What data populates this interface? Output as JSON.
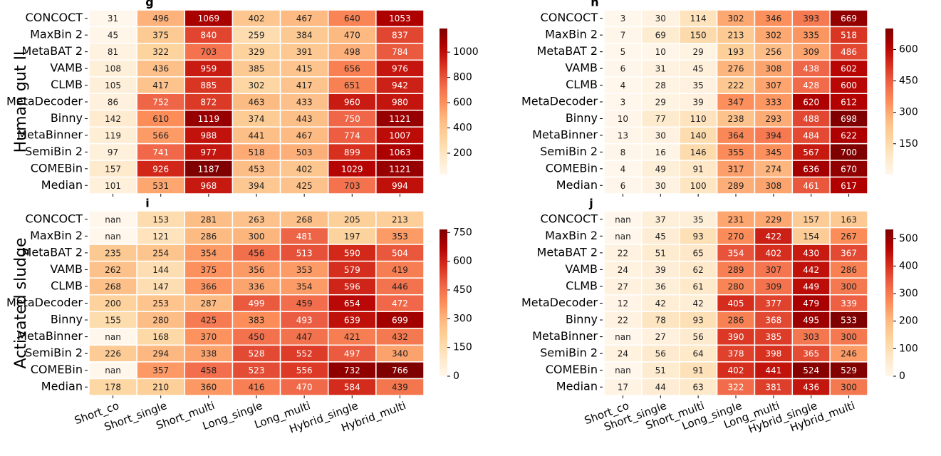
{
  "chart_data": [
    {
      "type": "heatmap",
      "panel_label": "g",
      "ylabel": "Human gut II",
      "colormap": "OrRd",
      "rows": [
        "CONCOCT",
        "MaxBin 2",
        "MetaBAT 2",
        "VAMB",
        "CLMB",
        "MetaDecoder",
        "Binny",
        "MetaBinner",
        "SemiBin 2",
        "COMEBin",
        "Median"
      ],
      "values": [
        [
          31,
          496,
          1069,
          402,
          467,
          640,
          1053
        ],
        [
          45,
          375,
          840,
          259,
          384,
          470,
          837
        ],
        [
          81,
          322,
          703,
          329,
          391,
          498,
          784
        ],
        [
          108,
          436,
          959,
          385,
          415,
          656,
          976
        ],
        [
          105,
          417,
          885,
          302,
          417,
          651,
          942
        ],
        [
          86,
          752,
          872,
          463,
          433,
          960,
          980
        ],
        [
          142,
          610,
          1119,
          374,
          443,
          750,
          1121
        ],
        [
          119,
          566,
          988,
          441,
          467,
          774,
          1007
        ],
        [
          97,
          741,
          977,
          518,
          503,
          899,
          1063
        ],
        [
          157,
          926,
          1187,
          453,
          402,
          1029,
          1121
        ],
        [
          101,
          531,
          968,
          394,
          425,
          703,
          994
        ]
      ],
      "clim": [
        31,
        1187
      ],
      "cticks": [
        200,
        400,
        600,
        800,
        1000
      ]
    },
    {
      "type": "heatmap",
      "panel_label": "h",
      "colormap": "OrRd",
      "rows": [
        "CONCOCT",
        "MaxBin 2",
        "MetaBAT 2",
        "VAMB",
        "CLMB",
        "MetaDecoder",
        "Binny",
        "MetaBinner",
        "SemiBin 2",
        "COMEBin",
        "Median"
      ],
      "values": [
        [
          3,
          30,
          114,
          302,
          346,
          393,
          669
        ],
        [
          7,
          69,
          150,
          213,
          302,
          335,
          518
        ],
        [
          5,
          10,
          29,
          193,
          256,
          309,
          486
        ],
        [
          6,
          31,
          45,
          276,
          308,
          438,
          602
        ],
        [
          4,
          28,
          35,
          222,
          307,
          428,
          600
        ],
        [
          3,
          29,
          39,
          347,
          333,
          620,
          612
        ],
        [
          10,
          77,
          110,
          238,
          293,
          488,
          698
        ],
        [
          13,
          30,
          140,
          364,
          394,
          484,
          622
        ],
        [
          8,
          16,
          146,
          355,
          345,
          567,
          700
        ],
        [
          4,
          49,
          91,
          317,
          274,
          636,
          670
        ],
        [
          6,
          30,
          100,
          289,
          308,
          461,
          617
        ]
      ],
      "clim": [
        3,
        700
      ],
      "cticks": [
        150,
        300,
        450,
        600
      ]
    },
    {
      "type": "heatmap",
      "panel_label": "i",
      "ylabel": "Activated sludge",
      "colormap": "OrRd",
      "missing_label": "nan",
      "rows": [
        "CONCOCT",
        "MaxBin 2",
        "MetaBAT 2",
        "VAMB",
        "CLMB",
        "MetaDecoder",
        "Binny",
        "MetaBinner",
        "SemiBin 2",
        "COMEBin",
        "Median"
      ],
      "columns": [
        "Short_co",
        "Short_single",
        "Short_multi",
        "Long_single",
        "Long_multi",
        "Hybrid_single",
        "Hybrid_multi"
      ],
      "values": [
        [
          null,
          153,
          281,
          263,
          268,
          205,
          213
        ],
        [
          null,
          121,
          286,
          300,
          481,
          197,
          353
        ],
        [
          235,
          254,
          354,
          456,
          513,
          590,
          504
        ],
        [
          262,
          144,
          375,
          356,
          353,
          579,
          419
        ],
        [
          268,
          147,
          366,
          336,
          354,
          596,
          446
        ],
        [
          200,
          253,
          287,
          499,
          459,
          654,
          472
        ],
        [
          155,
          280,
          425,
          383,
          493,
          639,
          699
        ],
        [
          null,
          168,
          370,
          450,
          447,
          421,
          432
        ],
        [
          226,
          294,
          338,
          528,
          552,
          497,
          340
        ],
        [
          null,
          357,
          458,
          523,
          556,
          732,
          766
        ],
        [
          178,
          210,
          360,
          416,
          470,
          584,
          439
        ]
      ],
      "clim": [
        0,
        766
      ],
      "cticks": [
        0,
        150,
        300,
        450,
        600,
        750
      ]
    },
    {
      "type": "heatmap",
      "panel_label": "j",
      "colormap": "OrRd",
      "missing_label": "nan",
      "rows": [
        "CONCOCT",
        "MaxBin 2",
        "MetaBAT 2",
        "VAMB",
        "CLMB",
        "MetaDecoder",
        "Binny",
        "MetaBinner",
        "SemiBin 2",
        "COMEBin",
        "Median"
      ],
      "columns": [
        "Short_co",
        "Short_single",
        "Short_multi",
        "Long_single",
        "Long_multi",
        "Hybrid_single",
        "Hybrid_multi"
      ],
      "values": [
        [
          null,
          37,
          35,
          231,
          229,
          157,
          163
        ],
        [
          null,
          45,
          93,
          270,
          422,
          154,
          267
        ],
        [
          22,
          51,
          65,
          354,
          402,
          430,
          367
        ],
        [
          24,
          39,
          62,
          289,
          307,
          442,
          286
        ],
        [
          27,
          36,
          61,
          280,
          309,
          449,
          300
        ],
        [
          12,
          42,
          42,
          405,
          377,
          479,
          339
        ],
        [
          22,
          78,
          93,
          286,
          368,
          495,
          533
        ],
        [
          null,
          27,
          56,
          390,
          385,
          303,
          300
        ],
        [
          24,
          56,
          64,
          378,
          398,
          365,
          246
        ],
        [
          null,
          51,
          91,
          402,
          441,
          524,
          529
        ],
        [
          17,
          44,
          63,
          322,
          381,
          436,
          300
        ]
      ],
      "clim": [
        0,
        533
      ],
      "cticks": [
        0,
        100,
        200,
        300,
        400,
        500
      ]
    }
  ]
}
